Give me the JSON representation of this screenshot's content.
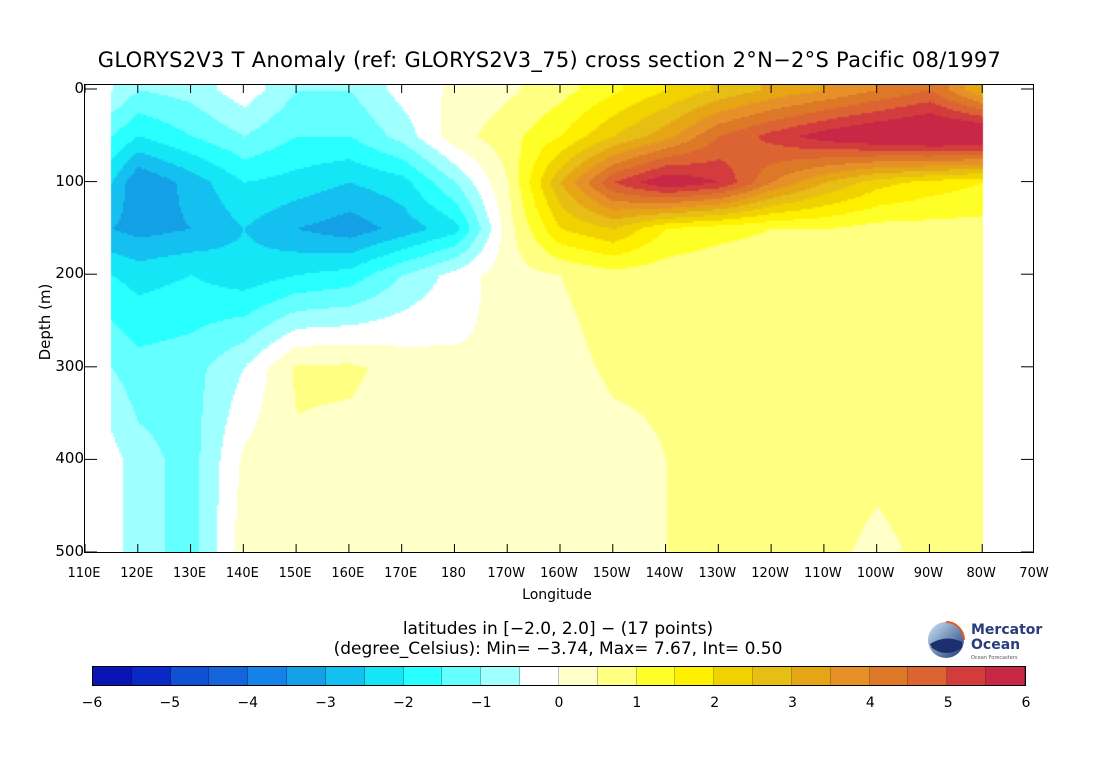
{
  "chart_data": {
    "type": "heatmap",
    "title": "GLORYS2V3 T Anomaly (ref: GLORYS2V3_75) cross section 2°N−2°S Pacific 08/1997",
    "xlabel": "Longitude",
    "ylabel": "Depth (m)",
    "xlim": [
      110,
      290
    ],
    "ylim": [
      0,
      500
    ],
    "x_tick_values": [
      110,
      120,
      130,
      140,
      150,
      160,
      170,
      180,
      190,
      200,
      210,
      220,
      230,
      240,
      250,
      260,
      270,
      280,
      290
    ],
    "x_tick_labels": [
      "110E",
      "120E",
      "130E",
      "140E",
      "150E",
      "160E",
      "170E",
      "180",
      "170W",
      "160W",
      "150W",
      "140W",
      "130W",
      "120W",
      "110W",
      "100W",
      "90W",
      "80W",
      "70W"
    ],
    "y_tick_labels": [
      "0",
      "100",
      "200",
      "300",
      "400",
      "500"
    ],
    "y_tick_values": [
      0,
      100,
      200,
      300,
      400,
      500
    ],
    "x": [
      115,
      120,
      130,
      140,
      150,
      160,
      170,
      180,
      190,
      200,
      210,
      220,
      230,
      240,
      250,
      260,
      270,
      280
    ],
    "depths": [
      0,
      50,
      100,
      150,
      200,
      300,
      400,
      500
    ],
    "values": [
      [
        -0.5,
        -1.0,
        -0.8,
        -0.2,
        -1.0,
        -1.0,
        -0.3,
        0.1,
        0.4,
        0.8,
        1.4,
        2.0,
        2.6,
        3.1,
        3.5,
        4.0,
        4.5,
        3.0
      ],
      [
        -1.5,
        -2.0,
        -1.5,
        -1.0,
        -1.5,
        -1.5,
        -0.8,
        0.3,
        0.8,
        1.5,
        2.5,
        3.3,
        4.5,
        5.2,
        5.8,
        6.2,
        6.5,
        6.5
      ],
      [
        -2.5,
        -3.5,
        -2.8,
        -2.0,
        -2.2,
        -2.5,
        -2.2,
        -1.0,
        0.5,
        3.0,
        5.0,
        6.0,
        5.5,
        4.0,
        3.0,
        2.2,
        1.8,
        1.5
      ],
      [
        -3.0,
        -3.2,
        -3.0,
        -2.5,
        -3.0,
        -3.3,
        -2.8,
        -2.2,
        0.3,
        2.0,
        2.5,
        1.5,
        1.2,
        1.0,
        1.0,
        0.8,
        0.8,
        0.8
      ],
      [
        -2.0,
        -2.2,
        -2.0,
        -2.3,
        -2.0,
        -1.8,
        -1.0,
        -0.3,
        0.3,
        0.5,
        0.8,
        0.7,
        0.6,
        0.6,
        0.7,
        0.8,
        0.8,
        0.7
      ],
      [
        -1.0,
        -1.3,
        -1.2,
        -0.5,
        0.6,
        0.6,
        0.3,
        0.1,
        0.0,
        0.3,
        0.6,
        0.6,
        0.6,
        0.6,
        1.0,
        0.7,
        0.8,
        0.7
      ],
      [
        -0.3,
        -0.8,
        -1.2,
        0.1,
        0.4,
        0.3,
        0.4,
        0.1,
        0.0,
        0.0,
        0.3,
        0.5,
        0.6,
        0.6,
        0.7,
        0.6,
        0.7,
        0.6
      ],
      [
        -0.3,
        -0.8,
        -1.2,
        0.3,
        0.3,
        0.3,
        0.4,
        0.0,
        0.0,
        0.2,
        0.3,
        0.5,
        0.6,
        0.6,
        0.6,
        0.4,
        0.6,
        0.6
      ]
    ],
    "notes": [
      "latitudes in [−2.0, 2.0] − (17 points)",
      "(degree_Celsius): Min= −3.74, Max= 7.67, Int= 0.50"
    ],
    "colorbar": {
      "min": -6,
      "max": 6,
      "interval": 0.5,
      "tick_labels": [
        "−6",
        "−5",
        "−4",
        "−3",
        "−2",
        "−1",
        "0",
        "1",
        "2",
        "3",
        "4",
        "5",
        "6"
      ],
      "colors": [
        "#0a14b4",
        "#0a28c8",
        "#1050d2",
        "#1464dc",
        "#1482e6",
        "#14a0e6",
        "#14c0f0",
        "#14e6f6",
        "#28ffff",
        "#64ffff",
        "#a0ffff",
        "#ffffff",
        "#ffffc8",
        "#ffff82",
        "#ffff28",
        "#fff000",
        "#f0d200",
        "#e6be14",
        "#e6a514",
        "#e69128",
        "#dc7828",
        "#dc6432",
        "#d23c3c",
        "#c82846"
      ]
    }
  },
  "logo": {
    "name": "Mercator Ocean",
    "line1": "Mercator",
    "line2": "Ocean",
    "tagline": "Ocean Forecasters"
  }
}
